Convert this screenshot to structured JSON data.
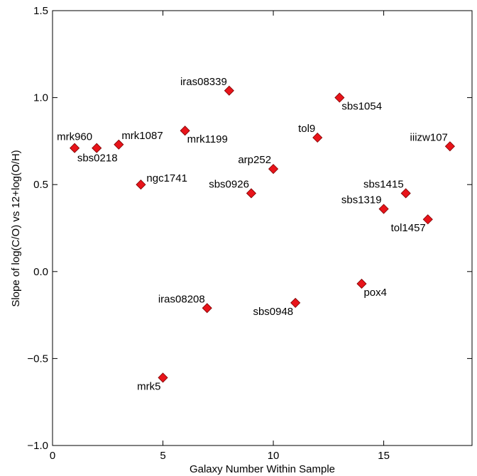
{
  "chart_data": {
    "type": "scatter",
    "title": "",
    "xlabel": "Galaxy Number Within Sample",
    "ylabel": "Slope of log(C/O) vs 12+log(O/H)",
    "xlim": [
      0,
      19
    ],
    "ylim": [
      -1.0,
      1.5
    ],
    "xticks": [
      0,
      5,
      10,
      15
    ],
    "xtick_labels": [
      "0",
      "5",
      "10",
      "15"
    ],
    "yticks": [
      -1.0,
      -0.5,
      0.0,
      0.5,
      1.0,
      1.5
    ],
    "ytick_labels": [
      "−1.0",
      "−0.5",
      "0.0",
      "0.5",
      "1.0",
      "1.5"
    ],
    "grid": false,
    "marker": "diamond",
    "marker_color": "#e8141a",
    "marker_edge_color": "#7a0000",
    "points": [
      {
        "x": 1,
        "y": 0.71,
        "label": "mrk960",
        "anchor": "above"
      },
      {
        "x": 2,
        "y": 0.71,
        "label": "sbs0218",
        "anchor": "below"
      },
      {
        "x": 3,
        "y": 0.73,
        "label": "mrk1087",
        "anchor": "above-right"
      },
      {
        "x": 4,
        "y": 0.5,
        "label": "ngc1741",
        "anchor": "right"
      },
      {
        "x": 5,
        "y": -0.61,
        "label": "mrk5",
        "anchor": "left-below"
      },
      {
        "x": 6,
        "y": 0.81,
        "label": "mrk1199",
        "anchor": "right-below"
      },
      {
        "x": 7,
        "y": -0.21,
        "label": "iras08208",
        "anchor": "left-above"
      },
      {
        "x": 8,
        "y": 1.04,
        "label": "iras08339",
        "anchor": "left-above"
      },
      {
        "x": 9,
        "y": 0.45,
        "label": "sbs0926",
        "anchor": "left-above"
      },
      {
        "x": 10,
        "y": 0.59,
        "label": "arp252",
        "anchor": "left-above"
      },
      {
        "x": 11,
        "y": -0.18,
        "label": "sbs0948",
        "anchor": "left-below"
      },
      {
        "x": 12,
        "y": 0.77,
        "label": "tol9",
        "anchor": "left-above"
      },
      {
        "x": 13,
        "y": 1.0,
        "label": "sbs1054",
        "anchor": "right-below"
      },
      {
        "x": 14,
        "y": -0.07,
        "label": "pox4",
        "anchor": "right-below"
      },
      {
        "x": 15,
        "y": 0.36,
        "label": "sbs1319",
        "anchor": "left-above"
      },
      {
        "x": 16,
        "y": 0.45,
        "label": "sbs1415",
        "anchor": "left-above"
      },
      {
        "x": 17,
        "y": 0.3,
        "label": "tol1457",
        "anchor": "left-below"
      },
      {
        "x": 18,
        "y": 0.72,
        "label": "iiizw107",
        "anchor": "left-above"
      }
    ]
  }
}
